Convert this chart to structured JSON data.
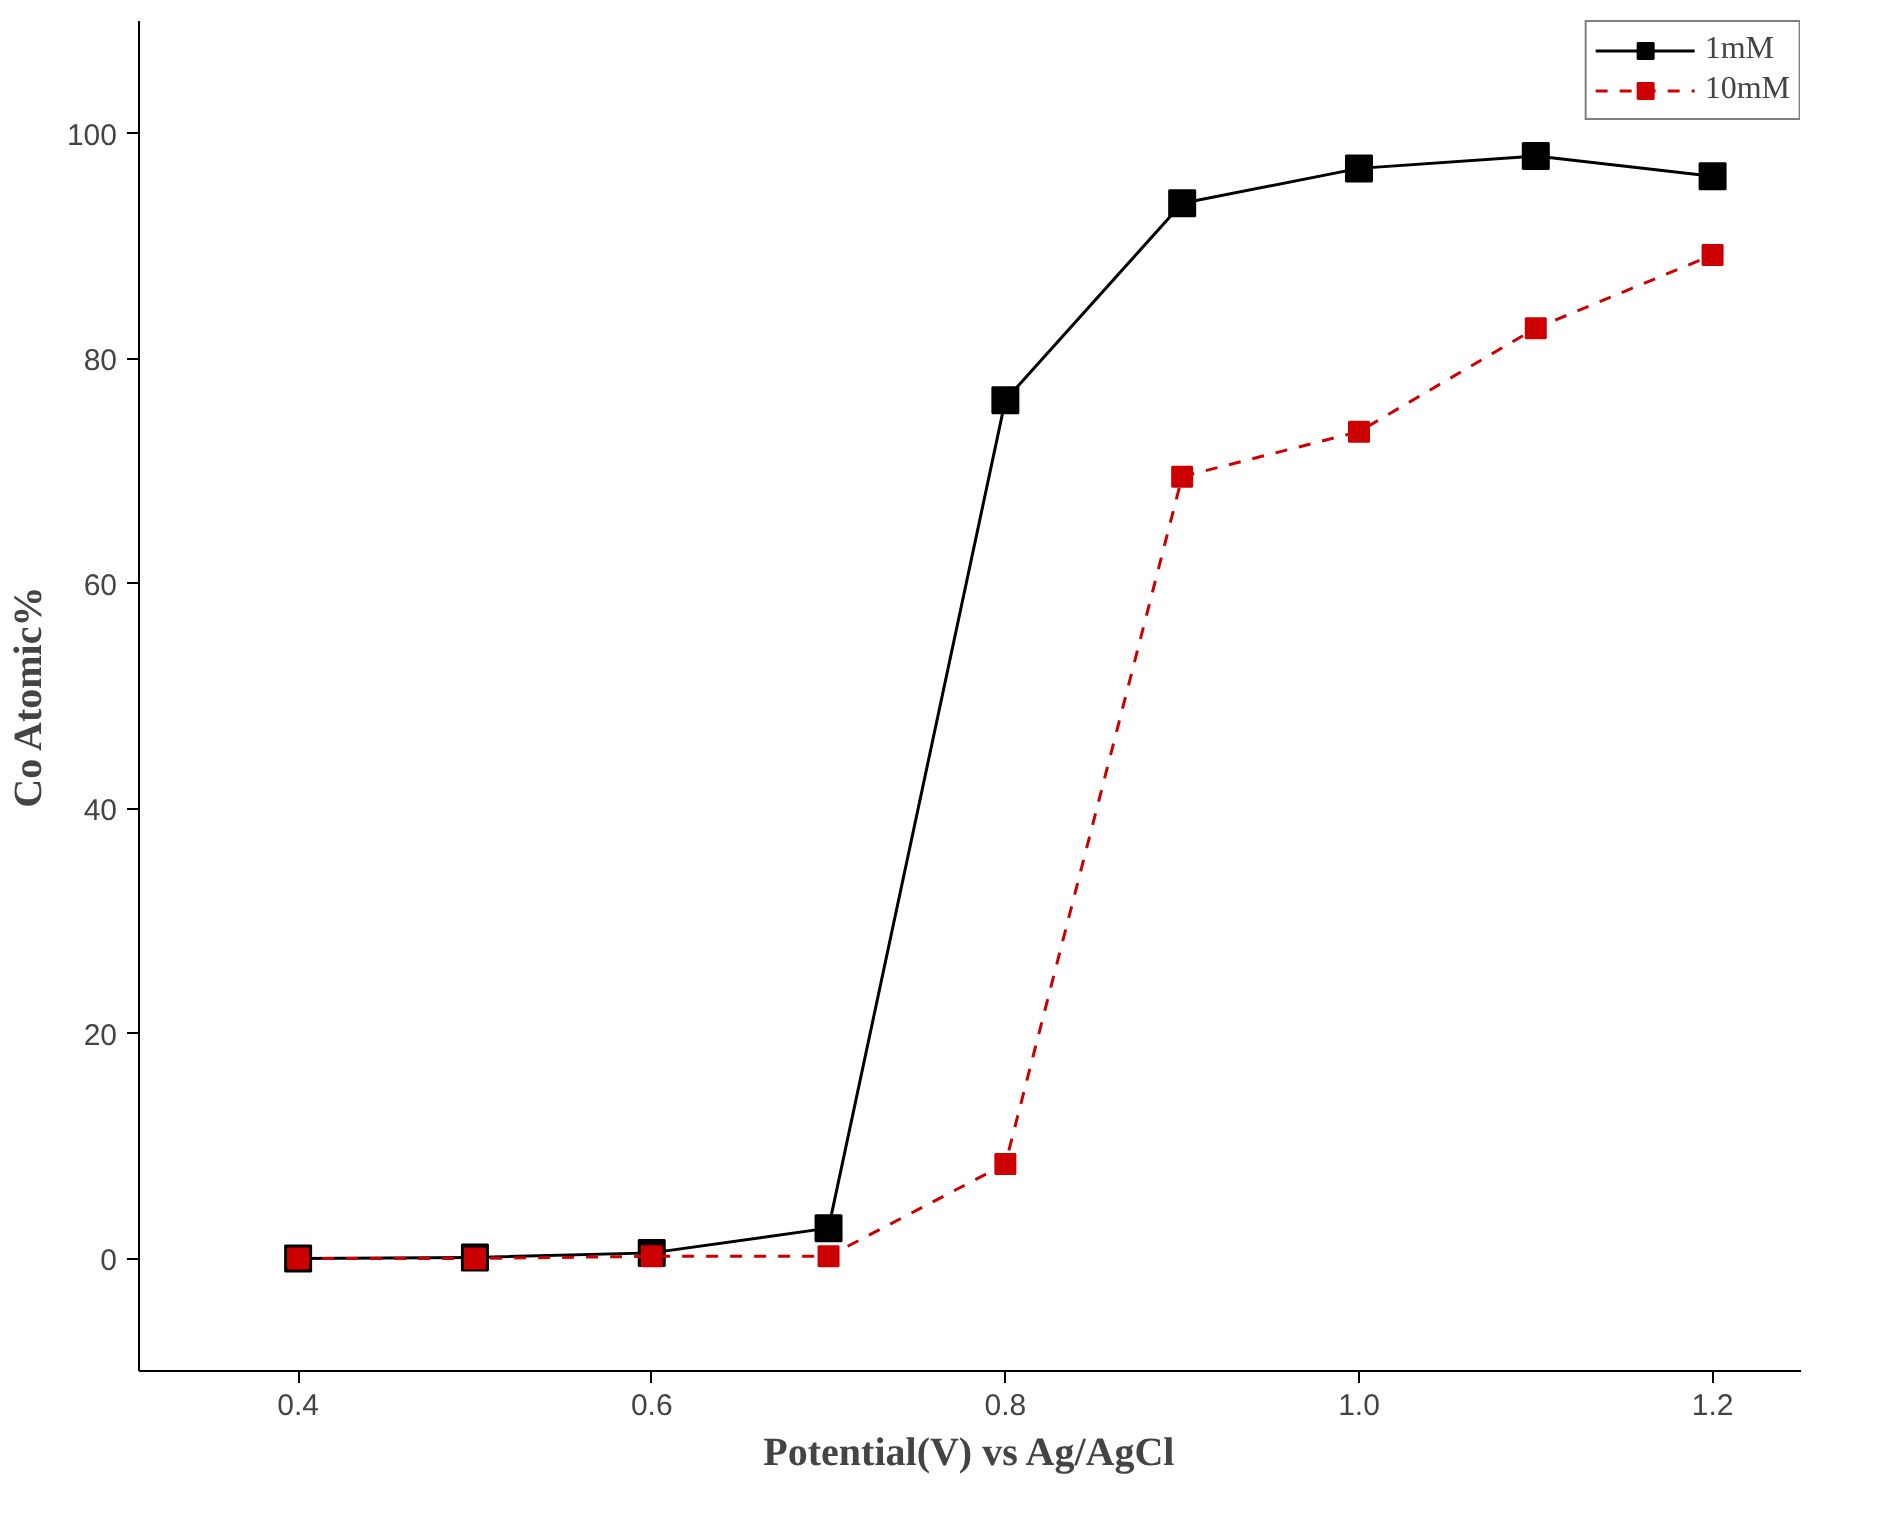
{
  "chart_data": {
    "type": "line",
    "xlabel": "Potential(V) vs Ag/AgCl",
    "ylabel": "Co Atomic%",
    "x": [
      0.4,
      0.5,
      0.6,
      0.7,
      0.8,
      0.9,
      1.0,
      1.1,
      1.2
    ],
    "series": [
      {
        "name": "1mM",
        "color": "#000000",
        "line_style": "solid",
        "values": [
          0,
          0.1,
          0.5,
          2.7,
          76.3,
          93.8,
          96.9,
          98,
          96.2
        ]
      },
      {
        "name": "10mM",
        "color": "#cc0000",
        "line_style": "dashed",
        "values": [
          0,
          0,
          0.2,
          0.2,
          8.4,
          69.5,
          73.5,
          82.7,
          89.2
        ]
      }
    ],
    "xlim": [
      0.31,
      1.25
    ],
    "ylim": [
      -10,
      110
    ],
    "xticks": [
      0.4,
      0.6,
      0.8,
      {
        "value": 1.0,
        "label": "1.0"
      },
      1.2
    ],
    "yticks": [
      0,
      20,
      40,
      60,
      80,
      100
    ],
    "marker": "square",
    "grid": false,
    "legend": "top right"
  }
}
